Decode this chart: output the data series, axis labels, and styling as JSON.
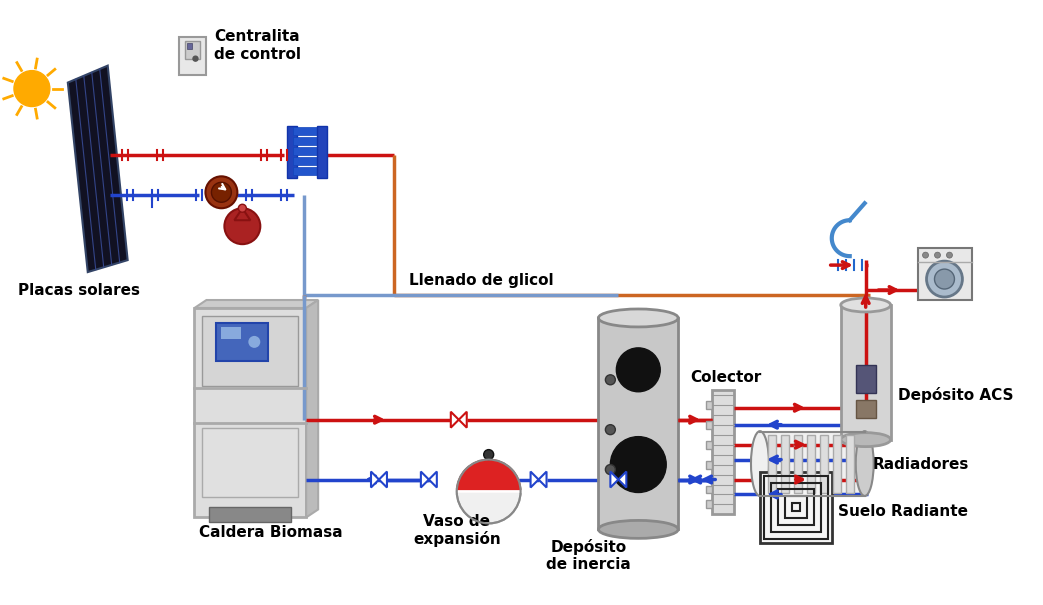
{
  "bg_color": "#ffffff",
  "red_color": "#cc1111",
  "blue_color": "#2244cc",
  "orange_color": "#cc6622",
  "lblue_color": "#7799cc",
  "lw": 2.5,
  "labels": {
    "centralita": "Centralita\nde control",
    "placas": "Placas solares",
    "llenado": "Llenado de glicol",
    "caldera": "Caldera Biomasa",
    "vaso": "Vaso de\nexpansión",
    "deposito": "Depósito\nde inercia",
    "colector": "Colector",
    "deposito_acs": "Depósito ACS",
    "radiadores": "Radiadores",
    "suelo": "Suelo Radiante"
  }
}
